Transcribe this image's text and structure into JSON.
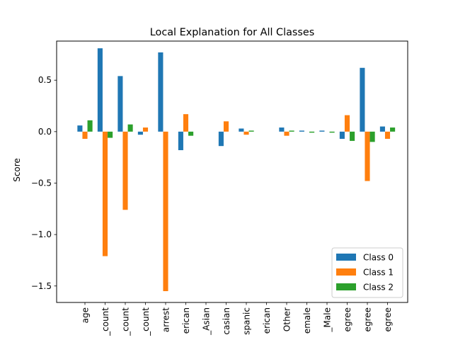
{
  "chart_data": {
    "type": "bar",
    "title": "Local Explanation for All Classes",
    "xlabel": "",
    "ylabel": "Score",
    "ylim": [
      -1.66,
      0.88
    ],
    "yticks": [
      -1.5,
      -1.0,
      -0.5,
      0.0,
      0.5
    ],
    "ytick_labels": [
      "−1.5",
      "−1.0",
      "−0.5",
      "0.0",
      "0.5"
    ],
    "grid": false,
    "legend_position": "bottom-right",
    "categories": [
      "age",
      "_count",
      "_count",
      "_count",
      "arrest",
      "erican",
      "_Asian",
      "casian",
      "spanic",
      "erican",
      "Other",
      "emale",
      "_Male",
      "egree",
      "egree",
      "egree"
    ],
    "series": [
      {
        "name": "Class 0",
        "color": "#1f77b4",
        "values": [
          0.06,
          0.81,
          0.54,
          -0.03,
          0.77,
          -0.18,
          0.0,
          -0.14,
          0.03,
          0.0,
          0.04,
          0.01,
          0.01,
          -0.07,
          0.62,
          0.05
        ]
      },
      {
        "name": "Class 1",
        "color": "#ff7f0e",
        "values": [
          -0.07,
          -1.21,
          -0.76,
          0.04,
          -1.55,
          0.17,
          0.0,
          0.1,
          -0.03,
          0.0,
          -0.04,
          0.0,
          0.0,
          0.16,
          -0.48,
          -0.07
        ]
      },
      {
        "name": "Class 2",
        "color": "#2ca02c",
        "values": [
          0.11,
          -0.06,
          0.07,
          0.0,
          0.0,
          -0.04,
          0.0,
          0.0,
          0.01,
          0.0,
          0.01,
          -0.01,
          -0.01,
          -0.09,
          -0.1,
          0.04
        ]
      }
    ]
  }
}
